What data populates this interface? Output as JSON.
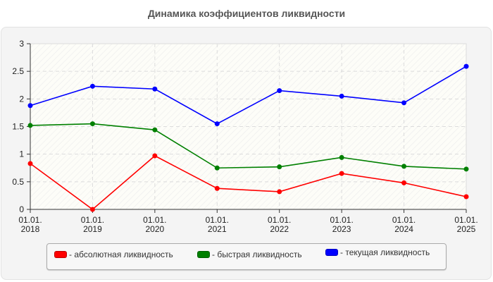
{
  "title": "Динамика коэффициентов ликвидности",
  "chart_data": {
    "type": "line",
    "title": "Динамика коэффициентов ликвидности",
    "xlabel": "",
    "ylabel": "",
    "categories": [
      "01.01.\n2018",
      "01.01.\n2019",
      "01.01.\n2020",
      "01.01.\n2021",
      "01.01.\n2022",
      "01.01.\n2023",
      "01.01.\n2024",
      "01.01.\n2025"
    ],
    "x_labels_line1": [
      "01.01.",
      "01.01.",
      "01.01.",
      "01.01.",
      "01.01.",
      "01.01.",
      "01.01.",
      "01.01."
    ],
    "x_labels_line2": [
      "2018",
      "2019",
      "2020",
      "2021",
      "2022",
      "2023",
      "2024",
      "2025"
    ],
    "ylim": [
      0,
      3
    ],
    "yticks": [
      0,
      0.5,
      1,
      1.5,
      2,
      2.5,
      3
    ],
    "ytick_labels": [
      "0",
      "0.5",
      "1",
      "1.5",
      "2",
      "2.5",
      "3"
    ],
    "grid": true,
    "legend_position": "bottom",
    "series": [
      {
        "name": "- абсолютная ликвидность",
        "color": "#ff0000",
        "values": [
          0.83,
          0.0,
          0.97,
          0.38,
          0.32,
          0.65,
          0.48,
          0.23
        ]
      },
      {
        "name": "- быстрая ликвидность",
        "color": "#008000",
        "values": [
          1.52,
          1.55,
          1.44,
          0.75,
          0.77,
          0.94,
          0.78,
          0.73
        ]
      },
      {
        "name": "- текущая ликвидность",
        "color": "#0000ff",
        "values": [
          1.88,
          2.23,
          2.18,
          1.55,
          2.15,
          2.05,
          1.93,
          2.59
        ]
      }
    ]
  },
  "legend": {
    "items": [
      {
        "label": "- абсолютная ликвидность",
        "color": "#ff0000"
      },
      {
        "label": "- быстрая ликвидность",
        "color": "#008000"
      },
      {
        "label": "- текущая ликвидность",
        "color": "#0000ff"
      }
    ]
  }
}
